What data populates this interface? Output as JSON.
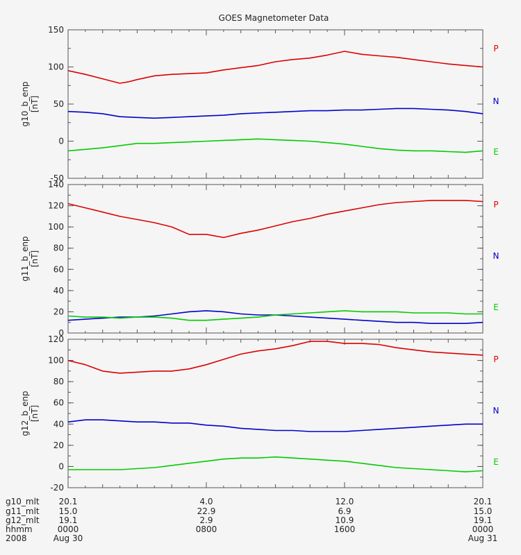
{
  "title": "GOES Magnetometer Data",
  "footer": {
    "rows": [
      {
        "label": "g10_mlt",
        "values": [
          "20.1",
          "4.0",
          "12.0",
          "20.1"
        ]
      },
      {
        "label": "g11_mlt",
        "values": [
          "15.0",
          "22.9",
          "6.9",
          "15.0"
        ]
      },
      {
        "label": "g12_mlt",
        "values": [
          "19.1",
          "2.9",
          "10.9",
          "19.1"
        ]
      },
      {
        "label": "hhmm",
        "values": [
          "0000",
          "0800",
          "1600",
          "0000"
        ]
      },
      {
        "label": "2008",
        "values": [
          "Aug 30",
          "",
          "",
          "Aug 31"
        ]
      }
    ]
  },
  "chart_data": [
    {
      "type": "line",
      "title": "GOES Magnetometer Data",
      "ylabel": "g10_b_enp",
      "unit": "[nT]",
      "ylim": [
        -50,
        150
      ],
      "yticks": [
        -50,
        0,
        50,
        100,
        150
      ],
      "xlim": [
        0,
        24
      ],
      "xlabel": "",
      "series": [
        {
          "name": "P",
          "color": "#dd0000",
          "x": [
            0,
            1,
            2,
            3,
            3.5,
            4,
            5,
            6,
            7,
            8,
            9,
            10,
            11,
            12,
            13,
            14,
            15,
            16,
            17,
            18,
            19,
            20,
            21,
            22,
            23,
            24
          ],
          "values": [
            95,
            90,
            84,
            78,
            80,
            83,
            88,
            90,
            91,
            92,
            96,
            99,
            102,
            107,
            110,
            112,
            116,
            121,
            117,
            115,
            113,
            110,
            107,
            104,
            102,
            100
          ]
        },
        {
          "name": "N",
          "color": "#0000cc",
          "x": [
            0,
            1,
            2,
            3,
            4,
            5,
            6,
            7,
            8,
            9,
            10,
            11,
            12,
            13,
            14,
            15,
            16,
            17,
            18,
            19,
            20,
            21,
            22,
            23,
            24
          ],
          "values": [
            40,
            39,
            37,
            33,
            32,
            31,
            32,
            33,
            34,
            35,
            37,
            38,
            39,
            40,
            41,
            41,
            42,
            42,
            43,
            44,
            44,
            43,
            42,
            40,
            37
          ]
        },
        {
          "name": "E",
          "color": "#00cc00",
          "x": [
            0,
            1,
            2,
            3,
            4,
            5,
            6,
            7,
            8,
            9,
            10,
            11,
            12,
            13,
            14,
            15,
            16,
            17,
            18,
            19,
            20,
            21,
            22,
            23,
            24
          ],
          "values": [
            -13,
            -11,
            -9,
            -6,
            -3,
            -3,
            -2,
            -1,
            0,
            1,
            2,
            3,
            2,
            1,
            0,
            -2,
            -4,
            -7,
            -10,
            -12,
            -13,
            -13,
            -14,
            -15,
            -13
          ]
        }
      ]
    },
    {
      "type": "line",
      "ylabel": "g11_b_enp",
      "unit": "[nT]",
      "ylim": [
        0,
        140
      ],
      "yticks": [
        0,
        20,
        40,
        60,
        80,
        100,
        120,
        140
      ],
      "xlim": [
        0,
        24
      ],
      "xlabel": "",
      "series": [
        {
          "name": "P",
          "color": "#dd0000",
          "x": [
            0,
            1,
            2,
            3,
            4,
            5,
            6,
            7,
            8,
            9,
            10,
            11,
            12,
            13,
            14,
            15,
            16,
            17,
            18,
            19,
            20,
            21,
            22,
            23,
            24
          ],
          "values": [
            122,
            118,
            114,
            110,
            107,
            104,
            100,
            93,
            93,
            90,
            94,
            97,
            101,
            105,
            108,
            112,
            115,
            118,
            121,
            123,
            124,
            125,
            125,
            125,
            124
          ]
        },
        {
          "name": "N",
          "color": "#0000cc",
          "x": [
            0,
            1,
            2,
            3,
            4,
            5,
            6,
            7,
            8,
            9,
            10,
            11,
            12,
            13,
            14,
            15,
            16,
            17,
            18,
            19,
            20,
            21,
            22,
            23,
            24
          ],
          "values": [
            12,
            13,
            14,
            15,
            15,
            16,
            18,
            20,
            21,
            20,
            18,
            17,
            17,
            16,
            15,
            14,
            13,
            12,
            11,
            10,
            10,
            9,
            9,
            9,
            10
          ]
        },
        {
          "name": "E",
          "color": "#00cc00",
          "x": [
            0,
            1,
            2,
            3,
            4,
            5,
            6,
            7,
            8,
            9,
            10,
            11,
            12,
            13,
            14,
            15,
            16,
            17,
            18,
            19,
            20,
            21,
            22,
            23,
            24
          ],
          "values": [
            16,
            15,
            15,
            14,
            15,
            15,
            14,
            12,
            12,
            13,
            14,
            15,
            17,
            18,
            19,
            20,
            21,
            20,
            20,
            20,
            19,
            19,
            19,
            18,
            18
          ]
        }
      ]
    },
    {
      "type": "line",
      "ylabel": "g12_b_enp",
      "unit": "[nT]",
      "ylim": [
        -20,
        120
      ],
      "yticks": [
        -20,
        0,
        20,
        40,
        60,
        80,
        100,
        120
      ],
      "xlim": [
        0,
        24
      ],
      "xlabel": "",
      "series": [
        {
          "name": "P",
          "color": "#dd0000",
          "x": [
            0,
            1,
            2,
            3,
            4,
            5,
            6,
            7,
            8,
            9,
            10,
            11,
            12,
            13,
            14,
            15,
            16,
            17,
            18,
            19,
            20,
            21,
            22,
            23,
            24
          ],
          "values": [
            100,
            96,
            90,
            88,
            89,
            90,
            90,
            92,
            96,
            101,
            106,
            109,
            111,
            114,
            118,
            118,
            116,
            116,
            115,
            112,
            110,
            108,
            107,
            106,
            105
          ]
        },
        {
          "name": "N",
          "color": "#0000cc",
          "x": [
            0,
            1,
            2,
            3,
            4,
            5,
            6,
            7,
            8,
            9,
            10,
            11,
            12,
            13,
            14,
            15,
            16,
            17,
            18,
            19,
            20,
            21,
            22,
            23,
            24
          ],
          "values": [
            42,
            44,
            44,
            43,
            42,
            42,
            41,
            41,
            39,
            38,
            36,
            35,
            34,
            34,
            33,
            33,
            33,
            34,
            35,
            36,
            37,
            38,
            39,
            40,
            40
          ]
        },
        {
          "name": "E",
          "color": "#00cc00",
          "x": [
            0,
            1,
            2,
            3,
            4,
            5,
            6,
            7,
            8,
            9,
            10,
            11,
            12,
            13,
            14,
            15,
            16,
            17,
            18,
            19,
            20,
            21,
            22,
            23,
            24
          ],
          "values": [
            -3,
            -3,
            -3,
            -3,
            -2,
            -1,
            1,
            3,
            5,
            7,
            8,
            8,
            9,
            8,
            7,
            6,
            5,
            3,
            1,
            -1,
            -2,
            -3,
            -4,
            -5,
            -4
          ]
        }
      ]
    }
  ]
}
